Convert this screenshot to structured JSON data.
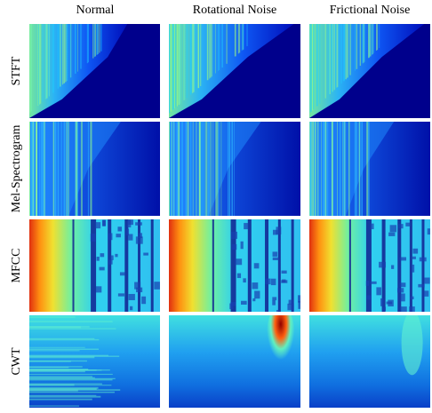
{
  "columns": [
    "Normal",
    "Rotational Noise",
    "Frictional Noise"
  ],
  "rows": [
    "STFT",
    "Mel-Spectrogram",
    "MFCC",
    "CWT"
  ]
}
